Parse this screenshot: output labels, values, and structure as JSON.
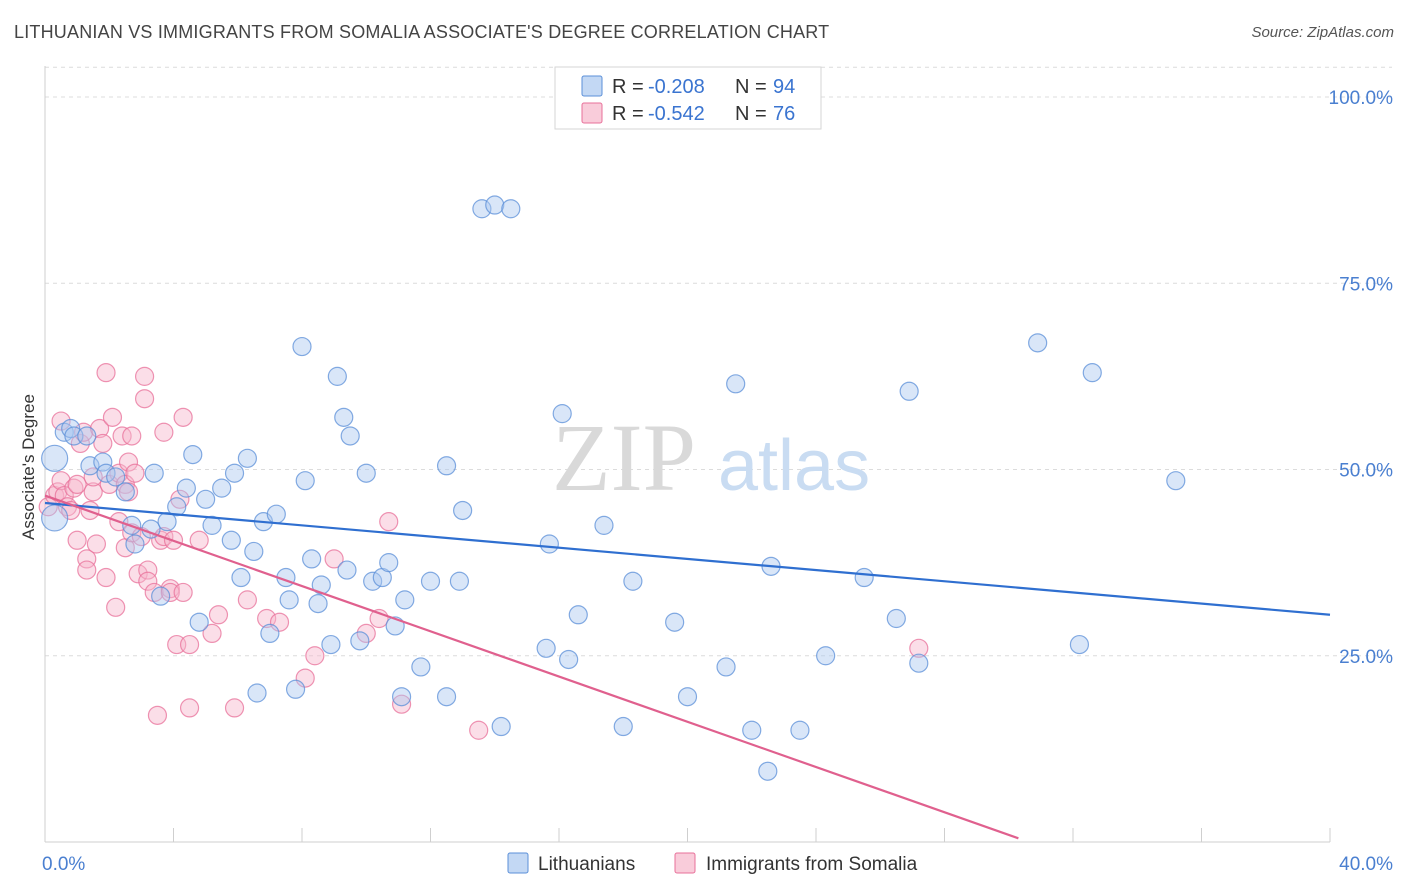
{
  "header": {
    "title": "LITHUANIAN VS IMMIGRANTS FROM SOMALIA ASSOCIATE'S DEGREE CORRELATION CHART",
    "source": "Source: ZipAtlas.com"
  },
  "watermark": {
    "zip": "ZIP",
    "atlas": "atlas"
  },
  "legend_top": {
    "rows": [
      {
        "r_label": "R = ",
        "r_value": "-0.208",
        "n_label": "N = ",
        "n_value": "94",
        "color": "#aac8f0"
      },
      {
        "r_label": "R = ",
        "r_value": "-0.542",
        "n_label": "N = ",
        "n_value": "76",
        "color": "#f6b6cb"
      }
    ]
  },
  "legend_bottom": {
    "items": [
      {
        "label": "Lithuanians",
        "color": "#aac8f0"
      },
      {
        "label": "Immigrants from Somalia",
        "color": "#f6b6cb"
      }
    ]
  },
  "chart_data": {
    "type": "scatter",
    "title": "LITHUANIAN VS IMMIGRANTS FROM SOMALIA ASSOCIATE'S DEGREE CORRELATION CHART",
    "xlabel": "",
    "ylabel": "Associate's Degree",
    "xlim": [
      0,
      40
    ],
    "ylim": [
      0,
      105
    ],
    "x_tick_labels": [
      "0.0%",
      "40.0%"
    ],
    "y_ticks": [
      25,
      50,
      75,
      100
    ],
    "y_tick_labels": [
      "25.0%",
      "50.0%",
      "75.0%",
      "100.0%"
    ],
    "grid": true,
    "legend_placement": "top-center",
    "colors": {
      "blue": "#5b8fd8",
      "blue_fill": "#aac8f0",
      "pink": "#e8709a",
      "pink_fill": "#f6b6cb",
      "blue_line": "#2f6fd0",
      "pink_line": "#e0608e"
    },
    "series": [
      {
        "name": "Lithuanians",
        "r": -0.208,
        "n": 94,
        "trend": {
          "x": [
            0,
            40
          ],
          "y": [
            45.5,
            30.5
          ]
        },
        "points": [
          [
            0.3,
            43.5
          ],
          [
            0.3,
            51.5
          ],
          [
            0.6,
            55.0
          ],
          [
            0.8,
            55.5
          ],
          [
            0.9,
            54.5
          ],
          [
            1.3,
            54.5
          ],
          [
            1.4,
            50.5
          ],
          [
            1.8,
            51.0
          ],
          [
            1.9,
            49.5
          ],
          [
            2.2,
            49.0
          ],
          [
            2.5,
            47.0
          ],
          [
            2.7,
            42.5
          ],
          [
            2.8,
            40.0
          ],
          [
            3.3,
            42.0
          ],
          [
            3.4,
            49.5
          ],
          [
            3.6,
            33.0
          ],
          [
            3.8,
            43.0
          ],
          [
            4.1,
            45.0
          ],
          [
            4.4,
            47.5
          ],
          [
            4.6,
            52.0
          ],
          [
            4.8,
            29.5
          ],
          [
            5.0,
            46.0
          ],
          [
            5.2,
            42.5
          ],
          [
            5.5,
            47.5
          ],
          [
            5.8,
            40.5
          ],
          [
            5.9,
            49.5
          ],
          [
            6.1,
            35.5
          ],
          [
            6.3,
            51.5
          ],
          [
            6.5,
            39.0
          ],
          [
            6.6,
            20.0
          ],
          [
            6.8,
            43.0
          ],
          [
            7.0,
            28.0
          ],
          [
            7.2,
            44.0
          ],
          [
            7.5,
            35.5
          ],
          [
            7.6,
            32.5
          ],
          [
            7.8,
            20.5
          ],
          [
            8.0,
            66.5
          ],
          [
            8.1,
            48.5
          ],
          [
            8.3,
            38.0
          ],
          [
            8.5,
            32.0
          ],
          [
            8.6,
            34.5
          ],
          [
            8.9,
            26.5
          ],
          [
            9.1,
            62.5
          ],
          [
            9.3,
            57.0
          ],
          [
            9.4,
            36.5
          ],
          [
            9.5,
            54.5
          ],
          [
            9.8,
            27.0
          ],
          [
            10.0,
            49.5
          ],
          [
            10.2,
            35.0
          ],
          [
            10.5,
            35.5
          ],
          [
            10.7,
            37.5
          ],
          [
            10.9,
            29.0
          ],
          [
            11.1,
            19.5
          ],
          [
            11.2,
            32.5
          ],
          [
            11.7,
            23.5
          ],
          [
            12.0,
            35.0
          ],
          [
            12.5,
            19.5
          ],
          [
            12.5,
            50.5
          ],
          [
            12.9,
            35.0
          ],
          [
            13.0,
            44.5
          ],
          [
            13.6,
            85.0
          ],
          [
            14.0,
            85.5
          ],
          [
            14.2,
            15.5
          ],
          [
            14.5,
            85.0
          ],
          [
            15.6,
            26.0
          ],
          [
            15.7,
            40.0
          ],
          [
            16.1,
            57.5
          ],
          [
            16.3,
            24.5
          ],
          [
            16.6,
            30.5
          ],
          [
            17.4,
            42.5
          ],
          [
            18.0,
            15.5
          ],
          [
            18.3,
            35.0
          ],
          [
            19.6,
            29.5
          ],
          [
            20.0,
            19.5
          ],
          [
            21.2,
            23.5
          ],
          [
            21.5,
            61.5
          ],
          [
            22.0,
            15.0
          ],
          [
            22.5,
            9.5
          ],
          [
            22.6,
            37.0
          ],
          [
            23.5,
            15.0
          ],
          [
            24.3,
            25.0
          ],
          [
            25.5,
            35.5
          ],
          [
            26.5,
            30.0
          ],
          [
            26.9,
            60.5
          ],
          [
            27.2,
            24.0
          ],
          [
            30.9,
            67.0
          ],
          [
            32.2,
            26.5
          ],
          [
            32.6,
            63.0
          ],
          [
            35.2,
            48.5
          ]
        ],
        "sizes_note": "two large points near x=0.3"
      },
      {
        "name": "Immigrants from Somalia",
        "r": -0.542,
        "n": 76,
        "trend": {
          "x": [
            0,
            30.3
          ],
          "y": [
            46.5,
            0.5
          ]
        },
        "points": [
          [
            0.1,
            45.0
          ],
          [
            0.3,
            46.5
          ],
          [
            0.4,
            47.0
          ],
          [
            0.5,
            56.5
          ],
          [
            0.5,
            48.5
          ],
          [
            0.6,
            46.5
          ],
          [
            0.7,
            45.0
          ],
          [
            0.8,
            44.5
          ],
          [
            0.9,
            47.5
          ],
          [
            1.0,
            40.5
          ],
          [
            1.0,
            48.0
          ],
          [
            1.1,
            53.5
          ],
          [
            1.2,
            55.0
          ],
          [
            1.3,
            38.0
          ],
          [
            1.3,
            36.5
          ],
          [
            1.4,
            44.5
          ],
          [
            1.5,
            47.0
          ],
          [
            1.5,
            49.0
          ],
          [
            1.6,
            40.0
          ],
          [
            1.7,
            55.5
          ],
          [
            1.8,
            53.5
          ],
          [
            1.9,
            35.5
          ],
          [
            1.9,
            63.0
          ],
          [
            2.0,
            48.0
          ],
          [
            2.1,
            57.0
          ],
          [
            2.3,
            49.5
          ],
          [
            2.3,
            43.0
          ],
          [
            2.2,
            31.5
          ],
          [
            2.4,
            54.5
          ],
          [
            2.5,
            39.5
          ],
          [
            2.5,
            48.0
          ],
          [
            2.6,
            47.0
          ],
          [
            2.6,
            51.0
          ],
          [
            2.7,
            41.5
          ],
          [
            2.7,
            54.5
          ],
          [
            2.8,
            49.5
          ],
          [
            2.9,
            36.0
          ],
          [
            3.0,
            41.0
          ],
          [
            3.1,
            62.5
          ],
          [
            3.1,
            59.5
          ],
          [
            3.2,
            36.5
          ],
          [
            3.2,
            35.0
          ],
          [
            3.4,
            33.5
          ],
          [
            3.5,
            17.0
          ],
          [
            3.6,
            40.5
          ],
          [
            3.7,
            41.0
          ],
          [
            3.7,
            55.0
          ],
          [
            3.9,
            34.0
          ],
          [
            3.9,
            33.5
          ],
          [
            4.0,
            40.5
          ],
          [
            4.1,
            26.5
          ],
          [
            4.2,
            46.0
          ],
          [
            4.3,
            33.5
          ],
          [
            4.3,
            57.0
          ],
          [
            4.5,
            26.5
          ],
          [
            4.5,
            18.0
          ],
          [
            4.8,
            40.5
          ],
          [
            5.2,
            28.0
          ],
          [
            5.4,
            30.5
          ],
          [
            5.9,
            18.0
          ],
          [
            6.3,
            32.5
          ],
          [
            6.9,
            30.0
          ],
          [
            7.3,
            29.5
          ],
          [
            8.1,
            22.0
          ],
          [
            8.4,
            25.0
          ],
          [
            9.0,
            38.0
          ],
          [
            10.0,
            28.0
          ],
          [
            10.4,
            30.0
          ],
          [
            11.1,
            18.5
          ],
          [
            13.5,
            15.0
          ],
          [
            10.7,
            43.0
          ],
          [
            27.2,
            26.0
          ]
        ]
      }
    ]
  }
}
